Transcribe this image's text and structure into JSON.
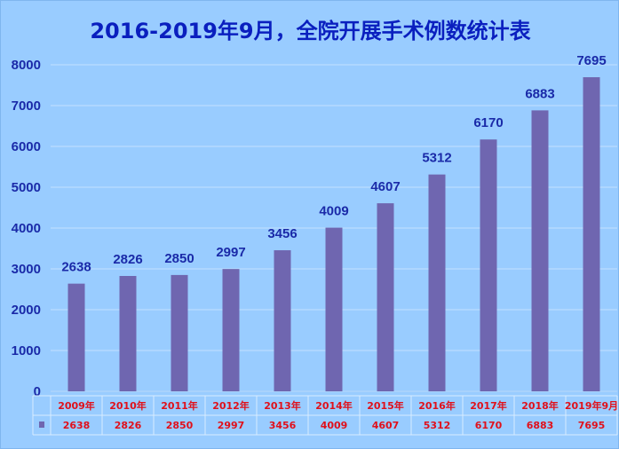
{
  "chart_data": {
    "type": "bar",
    "title": "2016-2019年9月，全院开展手术例数统计表",
    "categories": [
      "2009年",
      "2010年",
      "2011年",
      "2012年",
      "2013年",
      "2014年",
      "2015年",
      "2016年",
      "2017年",
      "2018年",
      "2019年9月"
    ],
    "values": [
      2638,
      2826,
      2850,
      2997,
      3456,
      4009,
      4607,
      5312,
      6170,
      6883,
      7695
    ],
    "value_labels": [
      "2638",
      "2826",
      "2850",
      "2997",
      "3456",
      "4009",
      "4607",
      "5312",
      "6170",
      "6883",
      "7695"
    ],
    "y_ticks": [
      "0",
      "1000",
      "2000",
      "3000",
      "4000",
      "5000",
      "6000",
      "7000",
      "8000"
    ],
    "ylim": [
      0,
      8000
    ],
    "grid": true,
    "data_table": true,
    "legend": "data-table",
    "colors": {
      "background": "#99ccff",
      "bar": "#6f66b0",
      "title": "#0a1fbf",
      "axis_text": "#1a2aa8",
      "table_text": "#e0101a",
      "grid": "#c4e0ff"
    }
  }
}
